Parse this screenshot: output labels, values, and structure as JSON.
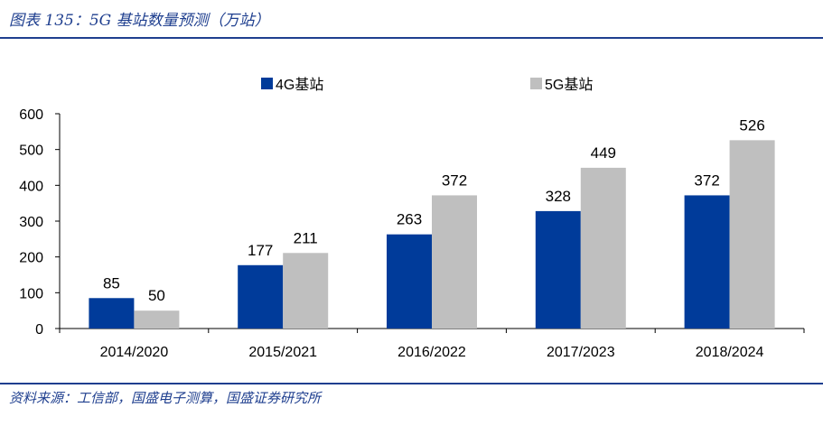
{
  "header": {
    "title": "图表 135：5G 基站数量预测（万站）"
  },
  "footer": {
    "source": "资料来源：工信部，国盛电子测算，国盛证券研究所"
  },
  "colors": {
    "series_4g": "#003b9a",
    "series_5g": "#bfbfbf",
    "accent": "#1f3f8f"
  },
  "chart_data": {
    "type": "bar",
    "categories": [
      "2014/2020",
      "2015/2021",
      "2016/2022",
      "2017/2023",
      "2018/2024"
    ],
    "series": [
      {
        "name": "4G基站",
        "values": [
          85,
          177,
          263,
          328,
          372
        ]
      },
      {
        "name": "5G基站",
        "values": [
          50,
          211,
          372,
          449,
          526
        ]
      }
    ],
    "ylim": [
      0,
      600
    ],
    "yticks": [
      "0",
      "100",
      "200",
      "300",
      "400",
      "500",
      "600"
    ],
    "legend": "top",
    "grid": false
  }
}
